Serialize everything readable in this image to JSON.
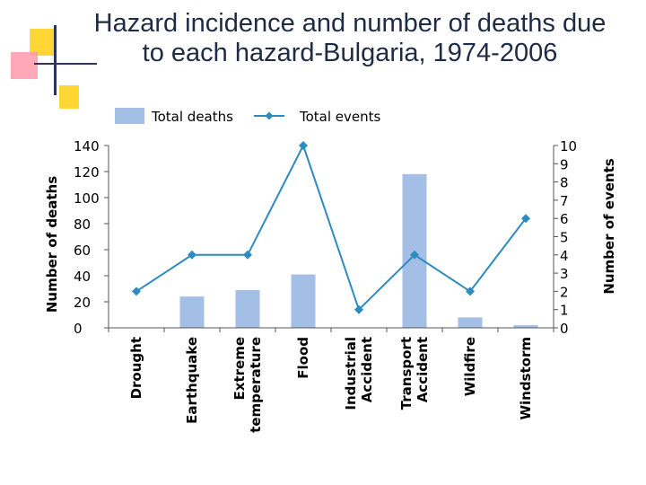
{
  "title_line1": "Hazard incidence and number of deaths due",
  "title_line2": "to each hazard-Bulgaria, 1974-2006",
  "colors": {
    "bars": "#a4bfe6",
    "line": "#2d8bc0",
    "title": "#1f2a44"
  },
  "chart_data": {
    "type": "bar+line",
    "categories": [
      [
        "Drought"
      ],
      [
        "Earthquake"
      ],
      [
        "Extreme",
        "temperature"
      ],
      [
        "Flood"
      ],
      [
        "Industrial",
        "Accident"
      ],
      [
        "Transport",
        "Accident"
      ],
      [
        "Wildfire"
      ],
      [
        "Windstorm"
      ]
    ],
    "series": [
      {
        "name": "Total deaths",
        "type": "bar",
        "axis": "left",
        "values": [
          0,
          24,
          29,
          41,
          0,
          118,
          8,
          2
        ]
      },
      {
        "name": "Total events",
        "type": "line",
        "axis": "right",
        "values": [
          2,
          4,
          4,
          10,
          1,
          4,
          2,
          6
        ]
      }
    ],
    "ylabel_left": "Number of deaths",
    "ylabel_right": "Number of events",
    "ylim_left": [
      0,
      140
    ],
    "ylim_right": [
      0,
      10
    ],
    "yticks_left": [
      0,
      20,
      40,
      60,
      80,
      100,
      120,
      140
    ],
    "yticks_right": [
      0,
      1,
      2,
      3,
      4,
      5,
      6,
      7,
      8,
      9,
      10
    ],
    "legend_position": "top",
    "grid": false
  }
}
